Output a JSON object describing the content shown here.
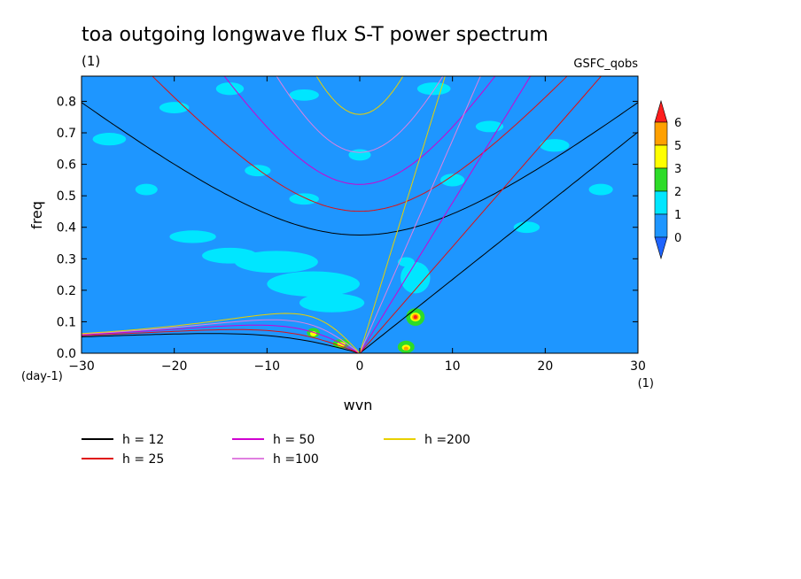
{
  "chart_data": {
    "type": "heatmap",
    "title": "toa outgoing longwave flux S-T power spectrum",
    "units_label": "(1)",
    "source_label": "GSFC_qobs",
    "xlabel": "wvn",
    "ylabel": "freq",
    "y_unit_label": "(day-1)",
    "x_unit_label": "(1)",
    "xlim": [
      -30,
      30
    ],
    "ylim": [
      0,
      0.88
    ],
    "x_ticks": [
      -30,
      -20,
      -10,
      0,
      10,
      20,
      30
    ],
    "y_ticks": [
      0.0,
      0.1,
      0.2,
      0.3,
      0.4,
      0.5,
      0.6,
      0.7,
      0.8
    ],
    "x_tick_labels": [
      "-30",
      "-20",
      "-10",
      "0",
      "10",
      "20",
      "30"
    ],
    "y_tick_labels": [
      "0.0",
      "0.1",
      "0.2",
      "0.3",
      "0.4",
      "0.5",
      "0.6",
      "0.7",
      "0.8"
    ],
    "colorbar": {
      "levels": [
        0,
        1,
        2,
        3,
        5,
        6
      ],
      "labels": [
        "0",
        "1",
        "2",
        "3",
        "5",
        "6"
      ],
      "colors": [
        "#1e64ff",
        "#1e96ff",
        "#00e6ff",
        "#2ddc28",
        "#ffff00",
        "#ffa000",
        "#ff1e1e"
      ]
    },
    "background_level_color": "#1e96ff",
    "patches": [
      {
        "level": 1,
        "wvn": -9,
        "freq": 0.29,
        "rw": 4.5,
        "rf": 0.035
      },
      {
        "level": 1,
        "wvn": -5,
        "freq": 0.22,
        "rw": 5.0,
        "rf": 0.04
      },
      {
        "level": 1,
        "wvn": -14,
        "freq": 0.31,
        "rw": 3.0,
        "rf": 0.025
      },
      {
        "level": 1,
        "wvn": -3,
        "freq": 0.16,
        "rw": 3.5,
        "rf": 0.03
      },
      {
        "level": 1,
        "wvn": -18,
        "freq": 0.37,
        "rw": 2.5,
        "rf": 0.02
      },
      {
        "level": 1,
        "wvn": -27,
        "freq": 0.68,
        "rw": 1.8,
        "rf": 0.02
      },
      {
        "level": 1,
        "wvn": -20,
        "freq": 0.78,
        "rw": 1.6,
        "rf": 0.018
      },
      {
        "level": 1,
        "wvn": -14,
        "freq": 0.84,
        "rw": 1.5,
        "rf": 0.02
      },
      {
        "level": 1,
        "wvn": -6,
        "freq": 0.82,
        "rw": 1.6,
        "rf": 0.018
      },
      {
        "level": 1,
        "wvn": 8,
        "freq": 0.84,
        "rw": 1.8,
        "rf": 0.02
      },
      {
        "level": 1,
        "wvn": 14,
        "freq": 0.72,
        "rw": 1.5,
        "rf": 0.018
      },
      {
        "level": 1,
        "wvn": 21,
        "freq": 0.66,
        "rw": 1.6,
        "rf": 0.02
      },
      {
        "level": 1,
        "wvn": 26,
        "freq": 0.52,
        "rw": 1.3,
        "rf": 0.018
      },
      {
        "level": 1,
        "wvn": 18,
        "freq": 0.4,
        "rw": 1.4,
        "rf": 0.018
      },
      {
        "level": 1,
        "wvn": 6,
        "freq": 0.24,
        "rw": 1.6,
        "rf": 0.05
      },
      {
        "level": 1,
        "wvn": 5,
        "freq": 0.29,
        "rw": 0.9,
        "rf": 0.015
      },
      {
        "level": 1,
        "wvn": -6,
        "freq": 0.49,
        "rw": 1.6,
        "rf": 0.018
      },
      {
        "level": 1,
        "wvn": -11,
        "freq": 0.58,
        "rw": 1.4,
        "rf": 0.018
      },
      {
        "level": 1,
        "wvn": 0,
        "freq": 0.63,
        "rw": 1.2,
        "rf": 0.018
      },
      {
        "level": 1,
        "wvn": 10,
        "freq": 0.55,
        "rw": 1.3,
        "rf": 0.02
      },
      {
        "level": 1,
        "wvn": -23,
        "freq": 0.52,
        "rw": 1.2,
        "rf": 0.018
      },
      {
        "level": 2,
        "wvn": 6,
        "freq": 0.115,
        "rw": 1.0,
        "rf": 0.028
      },
      {
        "level": 2,
        "wvn": 5,
        "freq": 0.02,
        "rw": 0.9,
        "rf": 0.02
      },
      {
        "level": 2,
        "wvn": -5,
        "freq": 0.065,
        "rw": 0.7,
        "rf": 0.015
      },
      {
        "level": 2,
        "wvn": -2,
        "freq": 0.03,
        "rw": 0.9,
        "rf": 0.015
      },
      {
        "level": 3,
        "wvn": -5,
        "freq": 0.062,
        "rw": 0.35,
        "rf": 0.008
      },
      {
        "level": 3,
        "wvn": -2,
        "freq": 0.028,
        "rw": 0.45,
        "rf": 0.008
      },
      {
        "level": 3,
        "wvn": 6,
        "freq": 0.115,
        "rw": 0.55,
        "rf": 0.014
      },
      {
        "level": 3,
        "wvn": 5,
        "freq": 0.018,
        "rw": 0.45,
        "rf": 0.009
      },
      {
        "level": 5,
        "wvn": 6,
        "freq": 0.115,
        "rw": 0.35,
        "rf": 0.01
      },
      {
        "level": 5,
        "wvn": 5,
        "freq": 0.015,
        "rw": 0.25,
        "rf": 0.006
      },
      {
        "level": 6,
        "wvn": 6,
        "freq": 0.115,
        "rw": 0.2,
        "rf": 0.006
      }
    ],
    "series": [
      {
        "name": "h = 12",
        "h": 12,
        "color": "#000000"
      },
      {
        "name": "h = 25",
        "h": 25,
        "color": "#e01010"
      },
      {
        "name": "h = 50",
        "h": 50,
        "color": "#d000d0"
      },
      {
        "name": "h =100",
        "h": 100,
        "color": "#e080e0"
      },
      {
        "name": "h =200",
        "h": 200,
        "color": "#e8d000"
      }
    ],
    "legend_placement": "bottom-left"
  }
}
